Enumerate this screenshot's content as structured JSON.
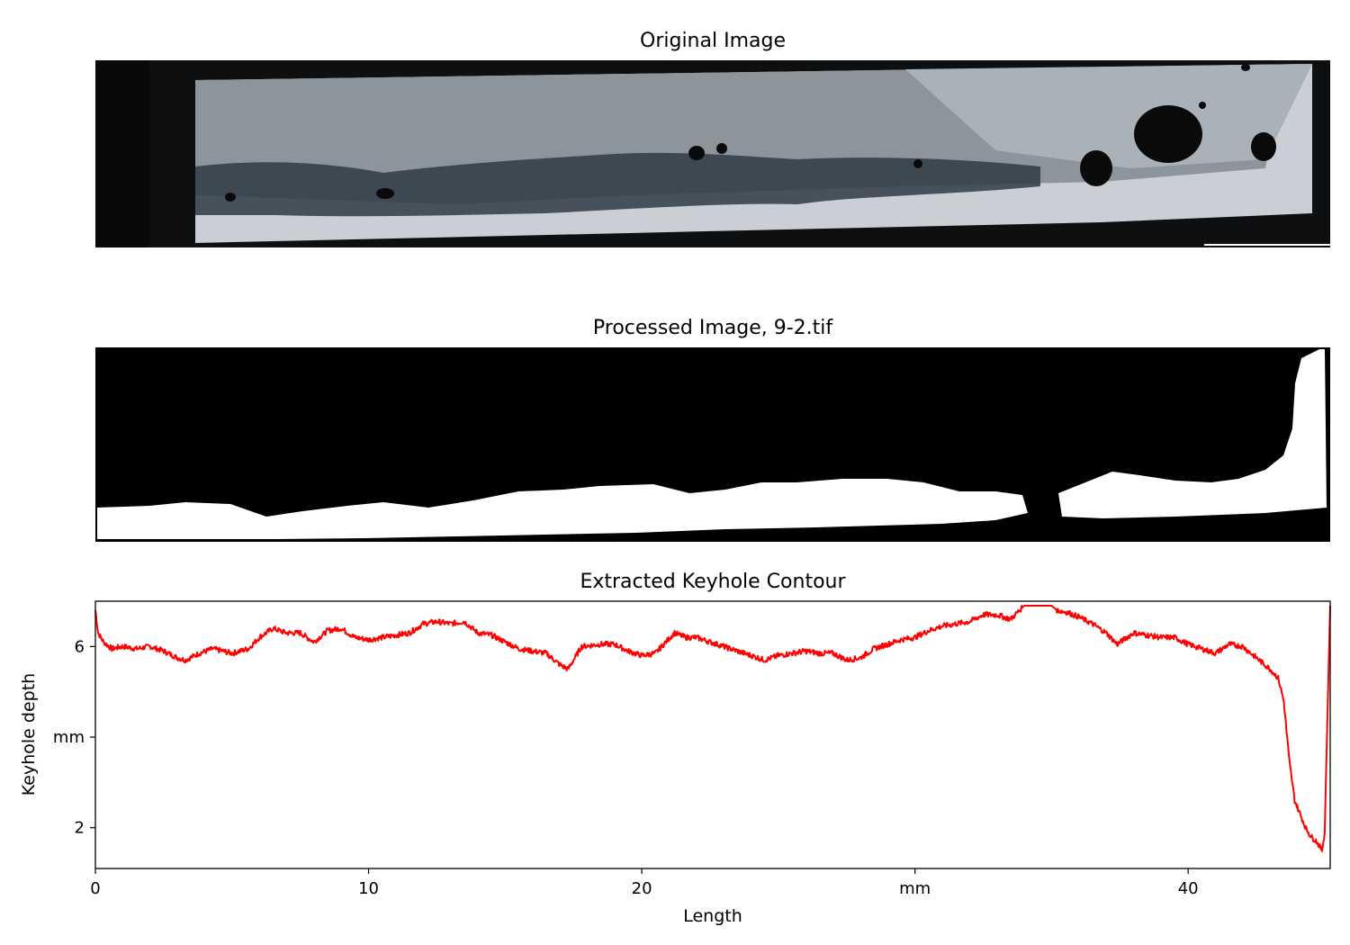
{
  "panels": {
    "original": {
      "title": "Original Image",
      "colors": {
        "background": "#0d0f11",
        "metal": "#c9cfd4",
        "upper": "#8d959c",
        "weld_dark": "#2f3b47",
        "pores": "#0a0a0a"
      }
    },
    "processed": {
      "title": "Processed Image, 9-2.tif",
      "colors": {
        "background": "#000000",
        "foreground": "#ffffff"
      }
    }
  },
  "chart_data": {
    "type": "line",
    "title": "Extracted Keyhole Contour",
    "xlabel": "Length",
    "ylabel": "Keyhole depth",
    "xlim": [
      0,
      45.2
    ],
    "ylim": [
      1.1,
      7.0
    ],
    "xticks": [
      {
        "value": 0,
        "label": "0"
      },
      {
        "value": 10,
        "label": "10"
      },
      {
        "value": 20,
        "label": "20"
      },
      {
        "value": 30,
        "label": "mm"
      },
      {
        "value": 40,
        "label": "40"
      }
    ],
    "yticks": [
      {
        "value": 2,
        "label": "2"
      },
      {
        "value": 4,
        "label": "mm"
      },
      {
        "value": 6,
        "label": "6"
      }
    ],
    "grid": false,
    "legend": "none",
    "series": [
      {
        "color": "#ff0000",
        "x": [
          0,
          0.1,
          0.3,
          0.6,
          1.0,
          1.5,
          2.0,
          2.5,
          3.0,
          3.3,
          3.8,
          4.3,
          5.0,
          5.6,
          6.0,
          6.5,
          7.0,
          7.5,
          8.0,
          8.5,
          9.0,
          9.5,
          10.0,
          10.5,
          11.0,
          11.5,
          12.0,
          12.5,
          13.0,
          13.5,
          14.0,
          14.5,
          15.0,
          15.5,
          16.0,
          16.5,
          17.0,
          17.3,
          17.8,
          18.5,
          19.0,
          19.5,
          20.0,
          20.5,
          20.8,
          21.2,
          21.6,
          22.0,
          22.5,
          23.0,
          23.5,
          24.0,
          24.5,
          25.0,
          25.5,
          26.0,
          26.5,
          27.0,
          27.5,
          28.0,
          28.5,
          29.0,
          29.5,
          30.0,
          30.5,
          31.0,
          31.5,
          32.0,
          32.5,
          33.0,
          33.5,
          34.0,
          35.0,
          35.2,
          35.6,
          36.0,
          36.5,
          37.0,
          37.4,
          38.0,
          38.5,
          39.0,
          39.5,
          40.0,
          40.5,
          41.0,
          41.5,
          42.0,
          42.5,
          43.0,
          43.3,
          43.5,
          43.7,
          43.9,
          44.1,
          44.3,
          44.5,
          44.7,
          44.9,
          45.0,
          45.1,
          45.2
        ],
        "y": [
          6.8,
          6.3,
          6.1,
          5.95,
          6.0,
          5.95,
          6.0,
          5.9,
          5.75,
          5.7,
          5.85,
          5.95,
          5.85,
          5.95,
          6.2,
          6.4,
          6.3,
          6.3,
          6.1,
          6.35,
          6.4,
          6.2,
          6.15,
          6.2,
          6.25,
          6.3,
          6.5,
          6.55,
          6.5,
          6.55,
          6.3,
          6.25,
          6.1,
          5.95,
          5.9,
          5.85,
          5.6,
          5.5,
          6.0,
          6.05,
          6.05,
          5.9,
          5.8,
          5.85,
          6.05,
          6.3,
          6.2,
          6.2,
          6.1,
          6.0,
          5.9,
          5.8,
          5.7,
          5.8,
          5.85,
          5.9,
          5.85,
          5.85,
          5.7,
          5.75,
          5.95,
          6.05,
          6.15,
          6.2,
          6.35,
          6.45,
          6.5,
          6.55,
          6.7,
          6.7,
          6.6,
          6.9,
          6.9,
          6.8,
          6.75,
          6.65,
          6.5,
          6.3,
          6.05,
          6.3,
          6.25,
          6.2,
          6.2,
          6.05,
          5.95,
          5.85,
          6.05,
          6.0,
          5.75,
          5.5,
          5.3,
          4.8,
          3.5,
          2.6,
          2.3,
          2.0,
          1.8,
          1.7,
          1.5,
          1.9,
          4.5,
          6.9
        ]
      }
    ]
  }
}
